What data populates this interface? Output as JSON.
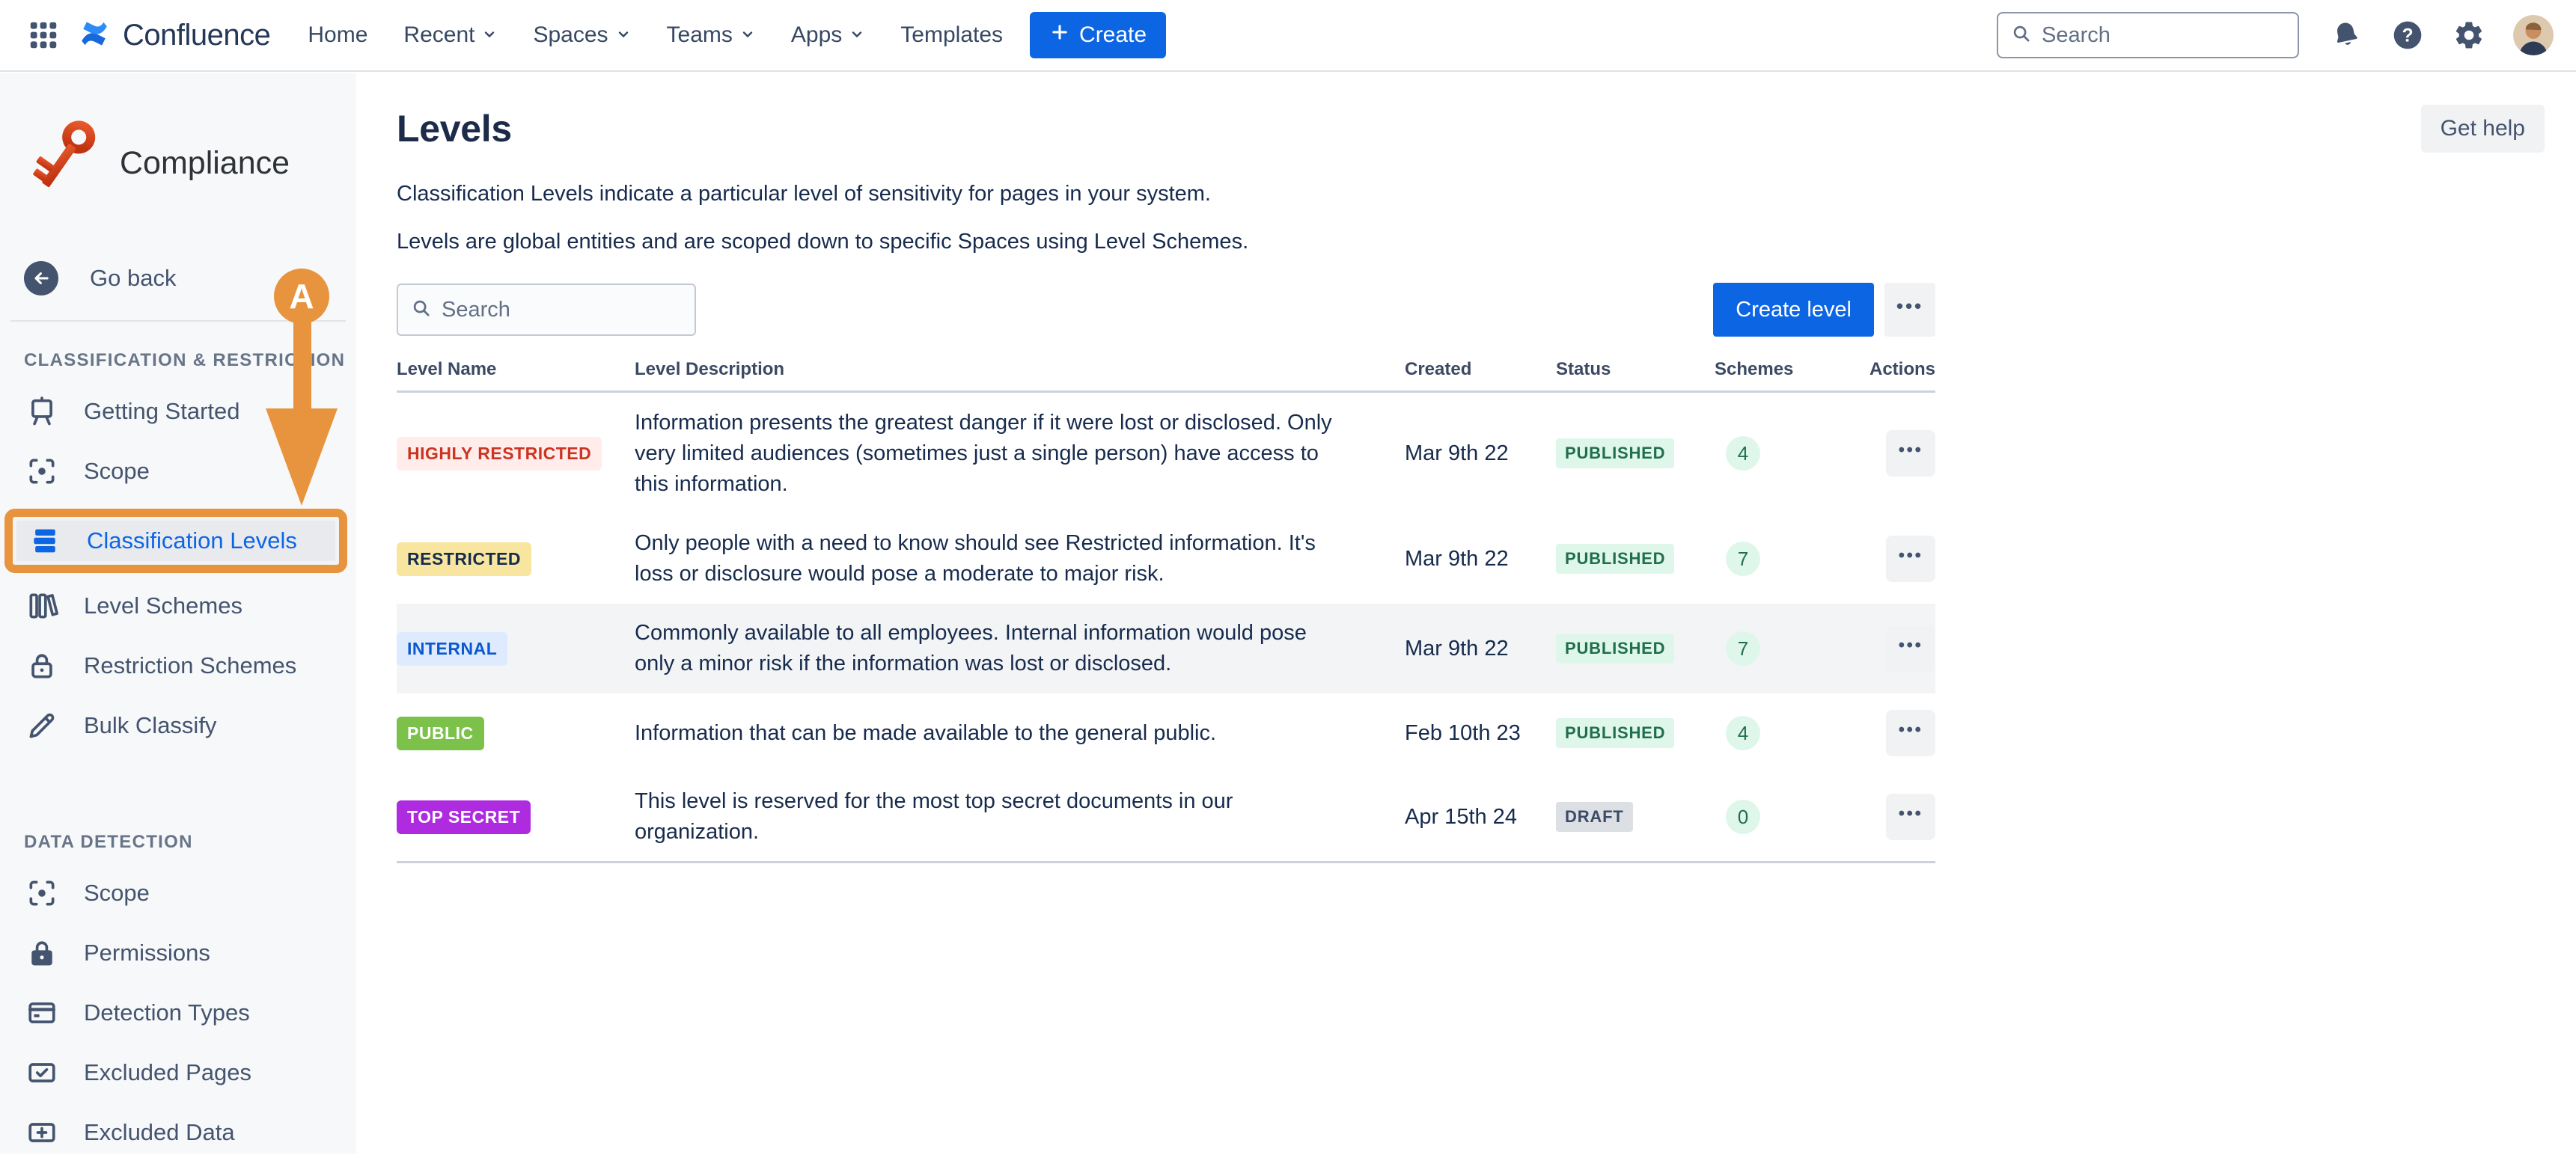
{
  "topbar": {
    "product": "Confluence",
    "nav": [
      {
        "label": "Home",
        "dropdown": false
      },
      {
        "label": "Recent",
        "dropdown": true
      },
      {
        "label": "Spaces",
        "dropdown": true
      },
      {
        "label": "Teams",
        "dropdown": true
      },
      {
        "label": "Apps",
        "dropdown": true
      },
      {
        "label": "Templates",
        "dropdown": false
      }
    ],
    "create_label": "Create",
    "search_placeholder": "Search"
  },
  "sidebar": {
    "app_name": "Compliance",
    "back_label": "Go back",
    "annotation_letter": "A",
    "sections": [
      {
        "title": "CLASSIFICATION & RESTRICTION",
        "items": [
          {
            "label": "Getting Started",
            "icon": "easel-icon",
            "active": false,
            "annotated": false
          },
          {
            "label": "Scope",
            "icon": "scope-icon",
            "active": false,
            "annotated": false
          },
          {
            "label": "Classification Levels",
            "icon": "levels-stack-icon",
            "active": true,
            "annotated": true
          },
          {
            "label": "Level Schemes",
            "icon": "books-icon",
            "active": false,
            "annotated": false
          },
          {
            "label": "Restriction Schemes",
            "icon": "lock-outline-icon",
            "active": false,
            "annotated": false
          },
          {
            "label": "Bulk Classify",
            "icon": "pencil-icon",
            "active": false,
            "annotated": false
          }
        ]
      },
      {
        "title": "DATA DETECTION",
        "items": [
          {
            "label": "Scope",
            "icon": "scope-icon",
            "active": false,
            "annotated": false
          },
          {
            "label": "Permissions",
            "icon": "lock-filled-icon",
            "active": false,
            "annotated": false
          },
          {
            "label": "Detection Types",
            "icon": "card-icon",
            "active": false,
            "annotated": false
          },
          {
            "label": "Excluded Pages",
            "icon": "checkbox-icon",
            "active": false,
            "annotated": false
          },
          {
            "label": "Excluded Data",
            "icon": "plus-box-icon",
            "active": false,
            "annotated": false
          }
        ]
      }
    ]
  },
  "main": {
    "title": "Levels",
    "get_help_label": "Get help",
    "description_line1": "Classification Levels indicate a particular level of sensitivity for pages in your system.",
    "description_line2": "Levels are global entities and are scoped down to specific Spaces using Level Schemes.",
    "search_placeholder": "Search",
    "create_level_label": "Create level",
    "table": {
      "columns": [
        "Level Name",
        "Level Description",
        "Created",
        "Status",
        "Schemes",
        "Actions"
      ],
      "rows": [
        {
          "name": "HIGHLY RESTRICTED",
          "name_bg": "#FFECEB",
          "name_color": "#CA3521",
          "description": "Information presents the greatest danger if it were lost or disclosed. Only very limited audiences (sometimes just a single person) have access to this information.",
          "created": "Mar 9th 22",
          "status": "PUBLISHED",
          "status_type": "published",
          "schemes": "4",
          "highlighted": false
        },
        {
          "name": "RESTRICTED",
          "name_bg": "#F8E6A0",
          "name_color": "#172B4D",
          "description": "Only people with a need to know should see Restricted information. It's loss or disclosure would pose a moderate to major risk.",
          "created": "Mar 9th 22",
          "status": "PUBLISHED",
          "status_type": "published",
          "schemes": "7",
          "highlighted": false
        },
        {
          "name": "INTERNAL",
          "name_bg": "#DEEBFF",
          "name_color": "#0B57CF",
          "description": "Commonly available to all employees. Internal information would pose only a minor risk if the information was lost or disclosed.",
          "created": "Mar 9th 22",
          "status": "PUBLISHED",
          "status_type": "published",
          "schemes": "7",
          "highlighted": true
        },
        {
          "name": "PUBLIC",
          "name_bg": "#7CC24A",
          "name_color": "#FFFFFF",
          "description": "Information that can be made available to the general public.",
          "created": "Feb 10th 23",
          "status": "PUBLISHED",
          "status_type": "published",
          "schemes": "4",
          "highlighted": false
        },
        {
          "name": "TOP SECRET",
          "name_bg": "#AF2BE0",
          "name_color": "#FFFFFF",
          "description": "This level is reserved for the most top secret documents in our organization.",
          "created": "Apr 15th 24",
          "status": "DRAFT",
          "status_type": "draft",
          "schemes": "0",
          "highlighted": false
        }
      ]
    }
  },
  "colors": {
    "accent_blue": "#0C66E4",
    "annotation_orange": "#E8943F",
    "published_bg": "#DFF7EB",
    "published_text": "#216E4E",
    "draft_bg": "#DCDFE4",
    "draft_text": "#3B4A66",
    "schemes_bg": "#DFF7EB",
    "schemes_text": "#216E4E",
    "sidebar_bg": "#F7F8F9"
  }
}
